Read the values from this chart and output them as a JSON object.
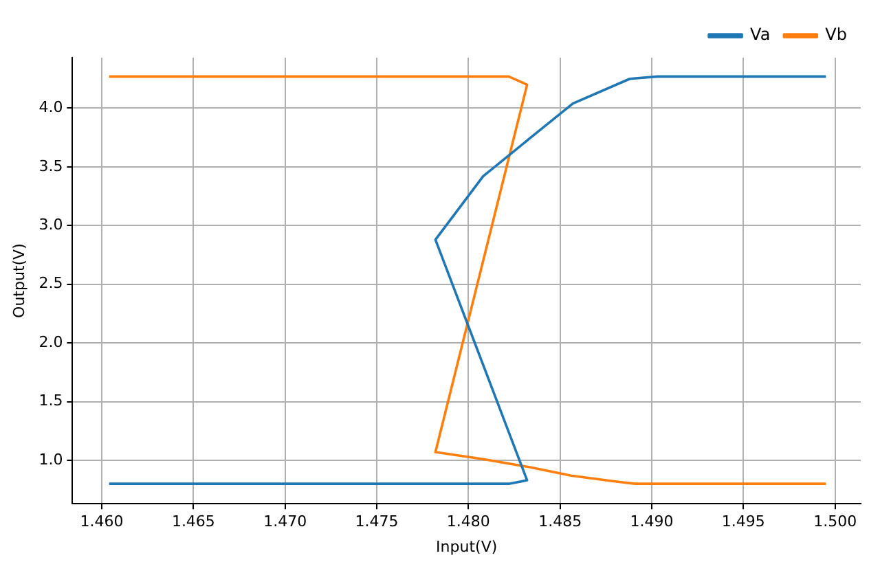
{
  "chart_data": {
    "type": "line",
    "xlabel": "Input(V)",
    "ylabel": "Output(V)",
    "xlim": [
      1.4584,
      1.5014
    ],
    "ylim": [
      0.63,
      4.43
    ],
    "xticks": [
      {
        "value": 1.46,
        "label": "1.460"
      },
      {
        "value": 1.465,
        "label": "1.465"
      },
      {
        "value": 1.47,
        "label": "1.470"
      },
      {
        "value": 1.475,
        "label": "1.475"
      },
      {
        "value": 1.48,
        "label": "1.480"
      },
      {
        "value": 1.485,
        "label": "1.485"
      },
      {
        "value": 1.49,
        "label": "1.490"
      },
      {
        "value": 1.495,
        "label": "1.495"
      },
      {
        "value": 1.5,
        "label": "1.500"
      }
    ],
    "yticks": [
      {
        "value": 1,
        "label": "1.0"
      },
      {
        "value": 1.5,
        "label": "1.5"
      },
      {
        "value": 2,
        "label": "2.0"
      },
      {
        "value": 2.5,
        "label": "2.5"
      },
      {
        "value": 3,
        "label": "3.0"
      },
      {
        "value": 3.5,
        "label": "3.5"
      },
      {
        "value": 4,
        "label": "4.0"
      }
    ],
    "grid": true,
    "legend": "top right",
    "marker": "none",
    "line_style": "solid",
    "series": [
      {
        "name": "Va",
        "color": "#1f77b4",
        "x": [
          1.4604,
          1.4822,
          1.4832,
          1.4782,
          1.4808,
          1.4834,
          1.4857,
          1.4888,
          1.4903,
          1.4995
        ],
        "values": [
          0.8,
          0.8,
          0.83,
          2.88,
          3.42,
          3.75,
          4.04,
          4.25,
          4.27,
          4.27
        ]
      },
      {
        "name": "Vb",
        "color": "#ff7f0e",
        "x": [
          1.4604,
          1.4822,
          1.4832,
          1.4782,
          1.4808,
          1.4834,
          1.4856,
          1.488,
          1.4891,
          1.4995
        ],
        "values": [
          4.27,
          4.27,
          4.2,
          1.07,
          1.01,
          0.94,
          0.87,
          0.82,
          0.8,
          0.8
        ]
      }
    ]
  }
}
